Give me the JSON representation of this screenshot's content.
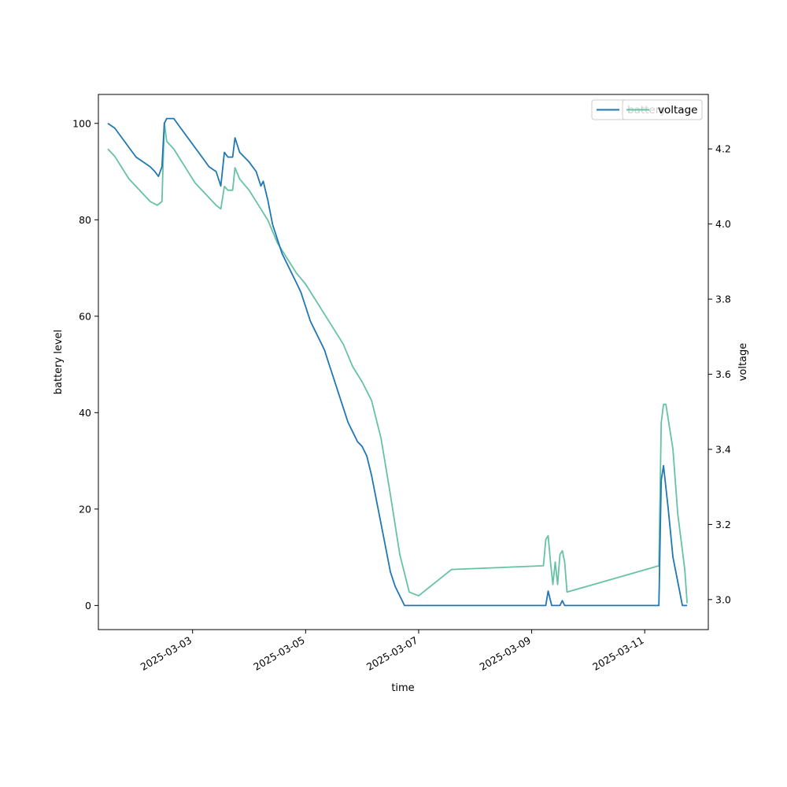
{
  "chart_data": {
    "type": "line",
    "xlabel": "time",
    "ylabel": "battery level",
    "y2label": "voltage",
    "x_ticks": [
      "2025-03-03",
      "2025-03-05",
      "2025-03-07",
      "2025-03-09",
      "2025-03-11"
    ],
    "xlim": [
      "2025-03-01T08:00",
      "2025-03-12T03:00"
    ],
    "ylim": [
      -5,
      106
    ],
    "y_ticks": [
      0,
      20,
      40,
      60,
      80,
      100
    ],
    "y2lim": [
      2.92,
      4.345
    ],
    "y2_ticks": [
      3.0,
      3.2,
      3.4,
      3.6,
      3.8,
      4.0,
      4.2
    ],
    "grid": false,
    "legend_position": "top-right",
    "colors": {
      "battery": "#1f77b4",
      "voltage": "#66c2a5"
    },
    "series": [
      {
        "name": "battery",
        "axis": "left",
        "color": "#1f77b4",
        "points": [
          [
            "2025-03-01T12:00",
            100
          ],
          [
            "2025-03-01T15:00",
            99
          ],
          [
            "2025-03-01T18:00",
            97
          ],
          [
            "2025-03-01T21:00",
            95
          ],
          [
            "2025-03-02T00:00",
            93
          ],
          [
            "2025-03-02T03:00",
            92
          ],
          [
            "2025-03-02T06:00",
            91
          ],
          [
            "2025-03-02T08:00",
            90
          ],
          [
            "2025-03-02T09:30",
            89
          ],
          [
            "2025-03-02T11:00",
            91
          ],
          [
            "2025-03-02T12:00",
            100
          ],
          [
            "2025-03-02T13:00",
            101
          ],
          [
            "2025-03-02T16:00",
            101
          ],
          [
            "2025-03-02T19:00",
            99
          ],
          [
            "2025-03-02T22:00",
            97
          ],
          [
            "2025-03-03T01:00",
            95
          ],
          [
            "2025-03-03T04:00",
            93
          ],
          [
            "2025-03-03T07:00",
            91
          ],
          [
            "2025-03-03T10:00",
            90
          ],
          [
            "2025-03-03T12:00",
            87
          ],
          [
            "2025-03-03T13:30",
            94
          ],
          [
            "2025-03-03T15:00",
            93
          ],
          [
            "2025-03-03T17:00",
            93
          ],
          [
            "2025-03-03T18:00",
            97
          ],
          [
            "2025-03-03T20:00",
            94
          ],
          [
            "2025-03-04T00:00",
            92
          ],
          [
            "2025-03-04T03:00",
            90
          ],
          [
            "2025-03-04T05:00",
            87
          ],
          [
            "2025-03-04T06:00",
            88
          ],
          [
            "2025-03-04T08:00",
            84
          ],
          [
            "2025-03-04T10:00",
            79
          ],
          [
            "2025-03-04T12:00",
            76
          ],
          [
            "2025-03-04T14:00",
            73
          ],
          [
            "2025-03-04T16:00",
            71
          ],
          [
            "2025-03-04T18:00",
            69
          ],
          [
            "2025-03-04T20:00",
            67
          ],
          [
            "2025-03-04T22:00",
            65
          ],
          [
            "2025-03-05T00:00",
            62
          ],
          [
            "2025-03-05T02:00",
            59
          ],
          [
            "2025-03-05T04:00",
            57
          ],
          [
            "2025-03-05T06:00",
            55
          ],
          [
            "2025-03-05T08:00",
            53
          ],
          [
            "2025-03-05T10:00",
            50
          ],
          [
            "2025-03-05T12:00",
            47
          ],
          [
            "2025-03-05T14:00",
            44
          ],
          [
            "2025-03-05T16:00",
            41
          ],
          [
            "2025-03-05T18:00",
            38
          ],
          [
            "2025-03-05T20:00",
            36
          ],
          [
            "2025-03-05T22:00",
            34
          ],
          [
            "2025-03-06T00:00",
            33
          ],
          [
            "2025-03-06T02:00",
            31
          ],
          [
            "2025-03-06T04:00",
            27
          ],
          [
            "2025-03-06T06:00",
            22
          ],
          [
            "2025-03-06T08:00",
            17
          ],
          [
            "2025-03-06T10:00",
            12
          ],
          [
            "2025-03-06T12:00",
            7
          ],
          [
            "2025-03-06T14:00",
            4
          ],
          [
            "2025-03-06T16:00",
            2
          ],
          [
            "2025-03-06T18:00",
            0
          ],
          [
            "2025-03-09T06:00",
            0
          ],
          [
            "2025-03-09T07:00",
            3
          ],
          [
            "2025-03-09T08:30",
            0
          ],
          [
            "2025-03-09T12:00",
            0
          ],
          [
            "2025-03-09T13:00",
            1
          ],
          [
            "2025-03-09T14:00",
            0
          ],
          [
            "2025-03-11T06:00",
            0
          ],
          [
            "2025-03-11T07:00",
            26
          ],
          [
            "2025-03-11T08:00",
            29
          ],
          [
            "2025-03-11T10:00",
            20
          ],
          [
            "2025-03-11T12:00",
            10
          ],
          [
            "2025-03-11T14:00",
            5
          ],
          [
            "2025-03-11T16:00",
            0
          ],
          [
            "2025-03-11T18:00",
            0
          ]
        ]
      },
      {
        "name": "voltage",
        "axis": "right",
        "color": "#66c2a5",
        "points": [
          [
            "2025-03-01T12:00",
            4.2
          ],
          [
            "2025-03-01T15:00",
            4.18
          ],
          [
            "2025-03-01T18:00",
            4.15
          ],
          [
            "2025-03-01T21:00",
            4.12
          ],
          [
            "2025-03-02T00:00",
            4.1
          ],
          [
            "2025-03-02T03:00",
            4.08
          ],
          [
            "2025-03-02T06:00",
            4.06
          ],
          [
            "2025-03-02T09:00",
            4.05
          ],
          [
            "2025-03-02T11:00",
            4.06
          ],
          [
            "2025-03-02T12:00",
            4.27
          ],
          [
            "2025-03-02T13:00",
            4.22
          ],
          [
            "2025-03-02T16:00",
            4.2
          ],
          [
            "2025-03-02T19:00",
            4.17
          ],
          [
            "2025-03-02T22:00",
            4.14
          ],
          [
            "2025-03-03T01:00",
            4.11
          ],
          [
            "2025-03-03T04:00",
            4.09
          ],
          [
            "2025-03-03T07:00",
            4.07
          ],
          [
            "2025-03-03T10:00",
            4.05
          ],
          [
            "2025-03-03T12:00",
            4.04
          ],
          [
            "2025-03-03T13:30",
            4.1
          ],
          [
            "2025-03-03T15:00",
            4.09
          ],
          [
            "2025-03-03T17:00",
            4.09
          ],
          [
            "2025-03-03T18:00",
            4.15
          ],
          [
            "2025-03-03T20:00",
            4.12
          ],
          [
            "2025-03-04T00:00",
            4.09
          ],
          [
            "2025-03-04T04:00",
            4.05
          ],
          [
            "2025-03-04T08:00",
            4.01
          ],
          [
            "2025-03-04T12:00",
            3.95
          ],
          [
            "2025-03-04T16:00",
            3.91
          ],
          [
            "2025-03-04T20:00",
            3.87
          ],
          [
            "2025-03-05T00:00",
            3.84
          ],
          [
            "2025-03-05T04:00",
            3.8
          ],
          [
            "2025-03-05T08:00",
            3.76
          ],
          [
            "2025-03-05T12:00",
            3.72
          ],
          [
            "2025-03-05T16:00",
            3.68
          ],
          [
            "2025-03-05T20:00",
            3.62
          ],
          [
            "2025-03-06T00:00",
            3.58
          ],
          [
            "2025-03-06T04:00",
            3.53
          ],
          [
            "2025-03-06T08:00",
            3.43
          ],
          [
            "2025-03-06T12:00",
            3.28
          ],
          [
            "2025-03-06T16:00",
            3.12
          ],
          [
            "2025-03-06T20:00",
            3.02
          ],
          [
            "2025-03-07T00:00",
            3.01
          ],
          [
            "2025-03-07T14:00",
            3.08
          ],
          [
            "2025-03-09T05:00",
            3.09
          ],
          [
            "2025-03-09T06:00",
            3.16
          ],
          [
            "2025-03-09T07:00",
            3.17
          ],
          [
            "2025-03-09T08:00",
            3.1
          ],
          [
            "2025-03-09T09:00",
            3.04
          ],
          [
            "2025-03-09T10:00",
            3.1
          ],
          [
            "2025-03-09T11:00",
            3.04
          ],
          [
            "2025-03-09T12:00",
            3.12
          ],
          [
            "2025-03-09T13:00",
            3.13
          ],
          [
            "2025-03-09T14:00",
            3.1
          ],
          [
            "2025-03-09T15:00",
            3.02
          ],
          [
            "2025-03-11T06:00",
            3.09
          ],
          [
            "2025-03-11T07:00",
            3.47
          ],
          [
            "2025-03-11T08:00",
            3.52
          ],
          [
            "2025-03-11T09:00",
            3.52
          ],
          [
            "2025-03-11T12:00",
            3.4
          ],
          [
            "2025-03-11T14:00",
            3.23
          ],
          [
            "2025-03-11T17:00",
            3.08
          ],
          [
            "2025-03-11T18:00",
            2.99
          ]
        ]
      }
    ]
  }
}
